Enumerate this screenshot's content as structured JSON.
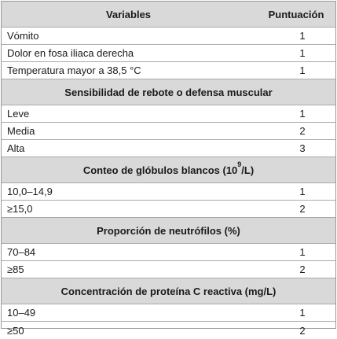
{
  "table": {
    "header": {
      "variables": "Variables",
      "score": "Puntuación"
    },
    "groups": [
      {
        "title": null,
        "rows": [
          {
            "label": "Vómito",
            "score": "1"
          },
          {
            "label": "Dolor en fosa iliaca derecha",
            "score": "1"
          },
          {
            "label": "Temperatura mayor a 38,5 °C",
            "score": "1"
          }
        ]
      },
      {
        "title": "Sensibilidad de rebote o defensa muscular",
        "rows": [
          {
            "label": "Leve",
            "score": "1"
          },
          {
            "label": "Media",
            "score": "2"
          },
          {
            "label": "Alta",
            "score": "3"
          }
        ]
      },
      {
        "title_prefix": "Conteo de glóbulos blancos (10",
        "title_sup": "9",
        "title_suffix": "/L)",
        "rows": [
          {
            "label": "10,0–14,9",
            "score": "1"
          },
          {
            "label": "≥15,0",
            "score": "2"
          }
        ]
      },
      {
        "title": "Proporción de neutrófilos (%)",
        "rows": [
          {
            "label": "70–84",
            "score": "1"
          },
          {
            "label": "≥85",
            "score": "2"
          }
        ]
      },
      {
        "title": "Concentración de proteína C reactiva (mg/L)",
        "rows": [
          {
            "label": "10–49",
            "score": "1"
          },
          {
            "label": "≥50",
            "score": "2"
          }
        ]
      }
    ]
  }
}
